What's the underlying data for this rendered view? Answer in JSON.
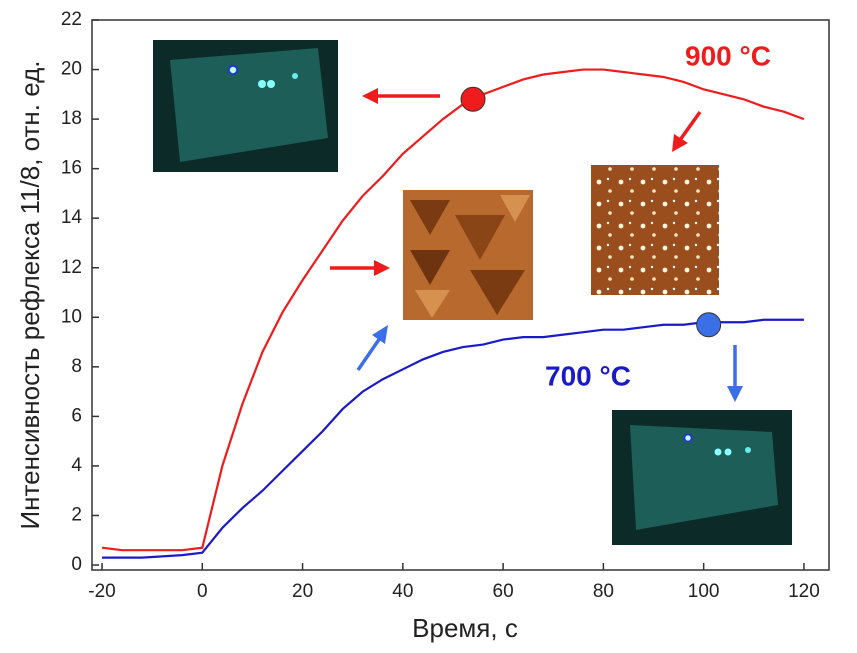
{
  "chart_data": {
    "type": "line",
    "xlabel": "Время, с",
    "ylabel": "Интенсивность рефлекса 11/8, отн. ед.",
    "x": [
      -20,
      -16,
      -12,
      -8,
      -4,
      0,
      4,
      8,
      12,
      16,
      20,
      24,
      28,
      32,
      36,
      40,
      44,
      48,
      52,
      56,
      60,
      64,
      68,
      72,
      76,
      80,
      84,
      88,
      92,
      96,
      100,
      104,
      108,
      112,
      116,
      120
    ],
    "series": [
      {
        "name": "900 °C",
        "color": "#ee1c1c",
        "values": [
          0.7,
          0.6,
          0.6,
          0.6,
          0.6,
          0.7,
          4.0,
          6.5,
          8.6,
          10.2,
          11.5,
          12.7,
          13.9,
          14.9,
          15.7,
          16.6,
          17.3,
          18.0,
          18.6,
          19.0,
          19.3,
          19.6,
          19.8,
          19.9,
          20.0,
          20.0,
          19.9,
          19.8,
          19.7,
          19.5,
          19.2,
          19.0,
          18.8,
          18.5,
          18.3,
          18.0
        ]
      },
      {
        "name": "700 °C",
        "color": "#1a1ac8",
        "values": [
          0.3,
          0.3,
          0.3,
          0.35,
          0.4,
          0.5,
          1.5,
          2.3,
          3.0,
          3.8,
          4.6,
          5.4,
          6.3,
          7.0,
          7.5,
          7.9,
          8.3,
          8.6,
          8.8,
          8.9,
          9.1,
          9.2,
          9.2,
          9.3,
          9.4,
          9.5,
          9.5,
          9.6,
          9.7,
          9.7,
          9.8,
          9.8,
          9.8,
          9.9,
          9.9,
          9.9
        ]
      }
    ],
    "markers": [
      {
        "x": 54,
        "y": 18.8,
        "color": "#ee1c1c"
      },
      {
        "x": 101,
        "y": 9.7,
        "color": "#3a6fe8"
      }
    ],
    "xlim": [
      -22,
      125
    ],
    "xticks": [
      -20,
      0,
      20,
      40,
      60,
      80,
      100,
      120
    ],
    "ylim": [
      -0.2,
      22
    ],
    "yticks": [
      0,
      2,
      4,
      6,
      8,
      10,
      12,
      14,
      16,
      18,
      20,
      22
    ]
  }
}
